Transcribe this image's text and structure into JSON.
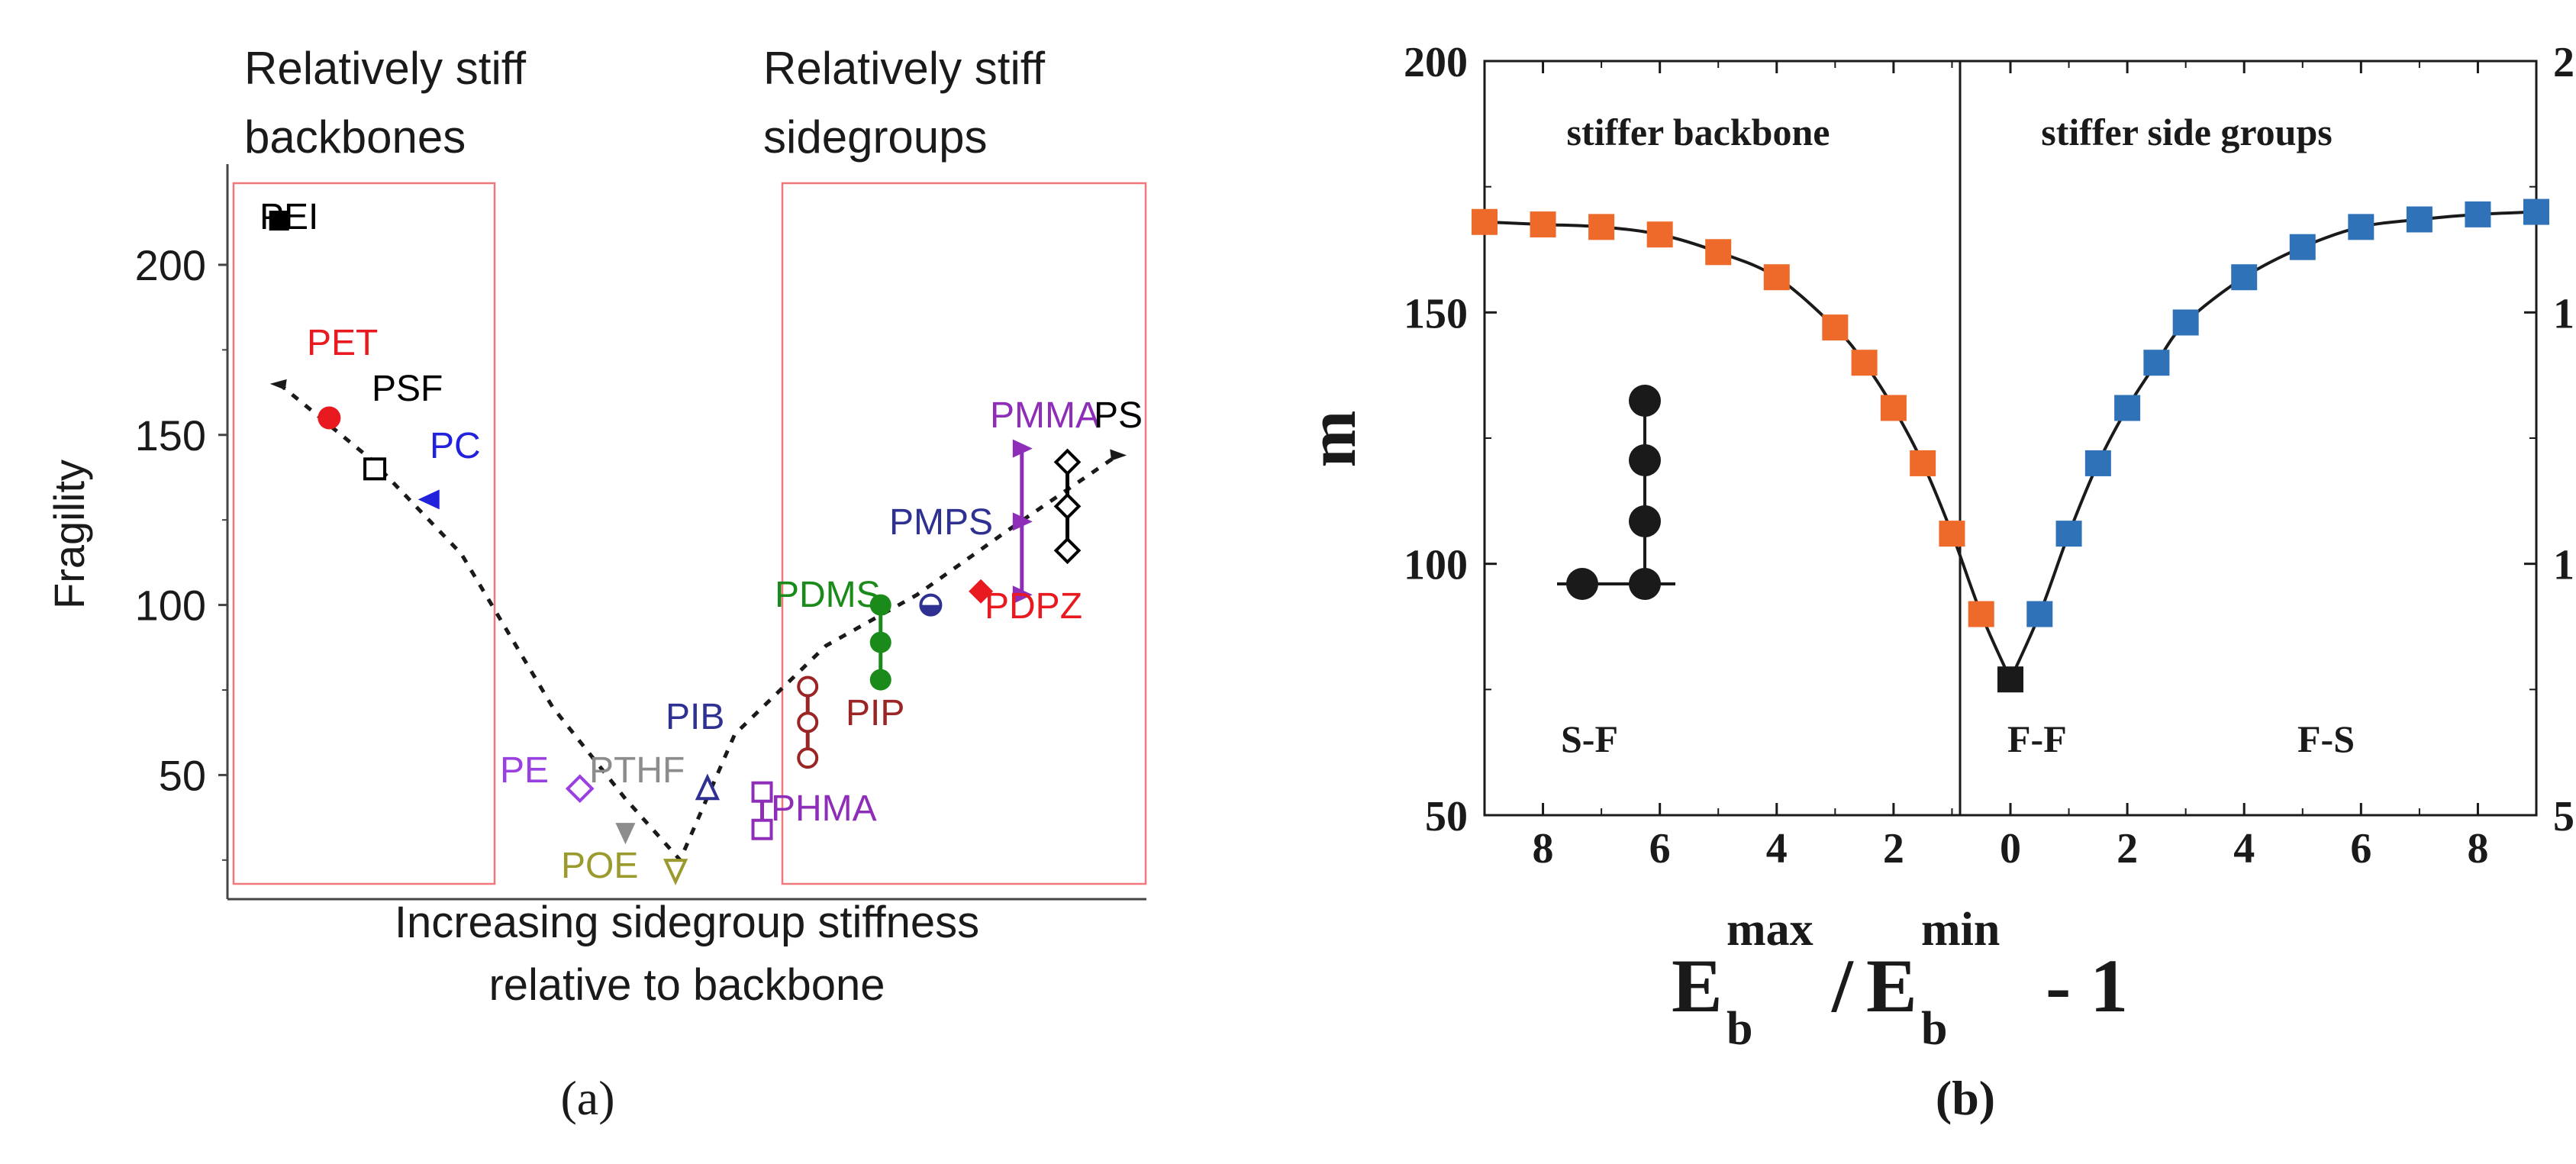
{
  "panel_labels": {
    "a": "(a)",
    "b": "(b)"
  },
  "colors": {
    "orange": "#ED6A2A",
    "blue": "#2F72B8",
    "black": "#1a1a1a",
    "box": "#F0787C",
    "red": "#E8191F",
    "purple": "#8E2DB8",
    "green": "#1A8A1A",
    "brown": "#9B2525",
    "navy": "#2E3192",
    "violet": "#9A3FE0",
    "gray": "#8C8C8C",
    "olive": "#9A9A2E",
    "pcblue": "#2222DD"
  },
  "chart_data": [
    {
      "type": "scatter",
      "ylabel": "Fragility",
      "xlabel_line1": "Increasing sidegroup stiffness",
      "xlabel_line2": "relative to backbone",
      "box_labels": {
        "left_line1": "Relatively stiff",
        "left_line2": "backbones",
        "right_line1": "Relatively stiff",
        "right_line2": "sidegroups"
      },
      "ylim": [
        18,
        224
      ],
      "yticks": [
        50,
        100,
        150,
        200
      ],
      "x_axis": "unlabeled position index 0-100",
      "points": [
        {
          "name": "PEI",
          "x": 5,
          "y": 213,
          "color": "#000000",
          "marker": "square-filled"
        },
        {
          "name": "PET",
          "x": 10.5,
          "y": 155,
          "color": "#E8191F",
          "marker": "circle-filled"
        },
        {
          "name": "PSF",
          "x": 15.5,
          "y": 140,
          "color": "#000000",
          "marker": "square-open"
        },
        {
          "name": "PC",
          "x": 21.5,
          "y": 131,
          "color": "#2222DD",
          "marker": "triangle-left-filled"
        },
        {
          "name": "PE",
          "x": 38,
          "y": 46,
          "color": "#9A3FE0",
          "marker": "diamond-open"
        },
        {
          "name": "PTHF",
          "x": 43,
          "y": 33,
          "color": "#8C8C8C",
          "marker": "triangle-down-filled"
        },
        {
          "name": "PIB",
          "x": 52,
          "y": 46,
          "color": "#2E3192",
          "marker": "triangle-up-open"
        },
        {
          "name": "POE",
          "x": 48.5,
          "y": 22,
          "color": "#9A9A2E",
          "marker": "triangle-down-open"
        },
        {
          "name": "PHMA",
          "x": 58,
          "y": 38,
          "color": "#8E2DB8",
          "marker": "square-open"
        },
        {
          "name": "PIP",
          "x": 63,
          "y": 65,
          "color": "#9B2525",
          "marker": "circle-open"
        },
        {
          "name": "PDMS",
          "x": 71,
          "y": 89,
          "color": "#1A8A1A",
          "marker": "circle-filled"
        },
        {
          "name": "PMPS",
          "x": 76.5,
          "y": 100,
          "color": "#2E3192",
          "marker": "circle-half"
        },
        {
          "name": "PDPZ",
          "x": 82,
          "y": 104,
          "color": "#E8191F",
          "marker": "diamond-filled"
        },
        {
          "name": "PMMA",
          "x": 86.5,
          "y": 125,
          "color": "#8E2DB8",
          "marker": "triangle-right-filled"
        },
        {
          "name": "PS",
          "x": 91.5,
          "y": 128,
          "color": "#000000",
          "marker": "diamond-open"
        }
      ],
      "point_label_texts": [
        "PEI",
        "PET",
        "PSF",
        "PC",
        "PE",
        "PTHF",
        "PIB",
        "POE",
        "PHMA",
        "PIP",
        "PDMS",
        "PMPS",
        "PDPZ",
        "PMMA",
        "PS"
      ],
      "trend_line": [
        [
          5,
          165
        ],
        [
          15,
          143
        ],
        [
          25,
          115
        ],
        [
          35,
          70
        ],
        [
          43,
          43
        ],
        [
          49,
          25
        ],
        [
          55,
          62
        ],
        [
          65,
          88
        ],
        [
          75,
          103
        ],
        [
          85,
          122
        ],
        [
          97,
          144
        ]
      ]
    },
    {
      "type": "scatter",
      "ylabel": "m",
      "xlabel": "E_b^max / E_b^min - 1",
      "xlabel_parts": {
        "E": "E",
        "sub_b": "b",
        "sup_max": "max",
        "slash": "/",
        "sup_min": "min",
        "minus_one": "- 1"
      },
      "ylim": [
        50,
        200
      ],
      "yticks": [
        50,
        100,
        150,
        200
      ],
      "xlim": [
        -9,
        9
      ],
      "xtick_values": [
        -8,
        -6,
        -4,
        -2,
        0,
        2,
        4,
        6,
        8
      ],
      "xtick_labels": [
        "8",
        "6",
        "4",
        "2",
        "0",
        "2",
        "4",
        "6",
        "8"
      ],
      "region_labels": {
        "left": "stiffer backbone",
        "right": "stiffer side groups"
      },
      "corner_labels": {
        "SF": "S-F",
        "FF": "F-F",
        "FS": "F-S"
      },
      "series": [
        {
          "name": "stiffer backbone",
          "color": "#ED6A2A",
          "x": [
            -9,
            -8,
            -7,
            -6,
            -5,
            -4,
            -3,
            -2.5,
            -2,
            -1.5,
            -1,
            -0.5
          ],
          "y": [
            168,
            167.5,
            167,
            165.5,
            162,
            157,
            147,
            140,
            131,
            120,
            106,
            90
          ]
        },
        {
          "name": "stiffer side groups",
          "color": "#2F72B8",
          "x": [
            0.5,
            1,
            1.5,
            2,
            2.5,
            3,
            4,
            5,
            6,
            7,
            8,
            9
          ],
          "y": [
            90,
            106,
            120,
            131,
            140,
            148,
            157,
            163,
            167,
            168.5,
            169.5,
            170
          ]
        },
        {
          "name": "origin",
          "color": "#1a1a1a",
          "x": [
            0
          ],
          "y": [
            77
          ]
        }
      ]
    }
  ]
}
